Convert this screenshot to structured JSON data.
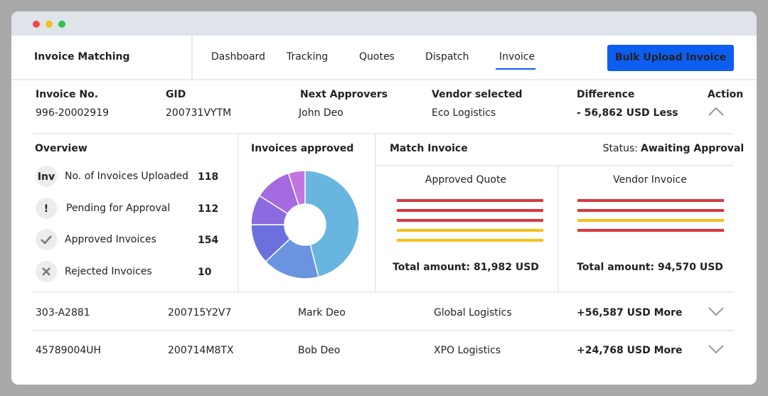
{
  "header": {
    "title": "Invoice Matching",
    "nav": [
      "Dashboard",
      "Tracking",
      "Quotes",
      "Dispatch",
      "Invoice"
    ],
    "button": "Bulk Upload Invoice"
  },
  "columns": [
    "Invoice No.",
    "GID",
    "Next Approvers",
    "Vendor selected",
    "Difference",
    "Action"
  ],
  "invoices": [
    [
      "996-20002919",
      "200731VYTM",
      "John Deo",
      "Eco Logistics",
      "- 56,862 USD Less"
    ],
    [
      "303-A2881",
      "200715Y2V7",
      "Mark Deo",
      "Global Logistics",
      "+56,587 USD More"
    ],
    [
      "45789004UH",
      "200714M8TX",
      "Bob Deo",
      "XPO Logistics",
      "+24,768 USD More"
    ]
  ],
  "overview": {
    "title": "Overview",
    "items": [
      {
        "icon": "Inv",
        "label": "No. of Invoices Uploaded",
        "value": 118
      },
      {
        "icon": "!",
        "label": "Pending for Approval",
        "value": 112
      },
      {
        "label": "Approved Invoices",
        "value": 154
      },
      {
        "label": "Rejected Invoices",
        "value": 10
      }
    ]
  },
  "approved": {
    "title": "Invoices approved",
    "values": [
      46,
      17,
      12,
      9,
      11,
      5
    ],
    "colors": [
      "#68b6df",
      "#6a94df",
      "#6b70dc",
      "#8a6be0",
      "#a56ae0",
      "#c274df"
    ]
  },
  "match": {
    "title": "Match Invoice",
    "status_label": "Status:",
    "status": "Awaiting Approval",
    "panels": [
      {
        "title": "Approved Quote",
        "total": "Total amount: 81,982 USD"
      },
      {
        "title": "Vendor Invoice",
        "total": "Total amount: 94,570 USD"
      }
    ]
  }
}
